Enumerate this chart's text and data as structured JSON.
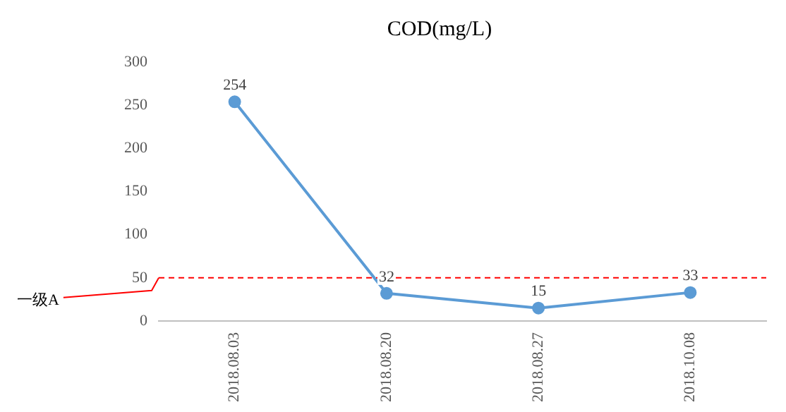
{
  "chart_data": {
    "type": "line",
    "title": "COD(mg/L)",
    "categories": [
      "2018.08.03",
      "2018.08.20",
      "2018.08.27",
      "2018.10.08"
    ],
    "series": [
      {
        "color": "#5b9bd5",
        "values": [
          254,
          32,
          15,
          33
        ]
      }
    ],
    "ylim": [
      0,
      300
    ],
    "yticks": [
      0,
      50,
      100,
      150,
      200,
      250,
      300
    ],
    "grid": false,
    "legend": false,
    "marker": "circle",
    "line_style": "solid",
    "data_labels": true,
    "ref_lines": [
      {
        "axis": "y",
        "value": 50,
        "label": "一级A",
        "color": "#ff0000",
        "line_style": "dashed"
      }
    ]
  }
}
